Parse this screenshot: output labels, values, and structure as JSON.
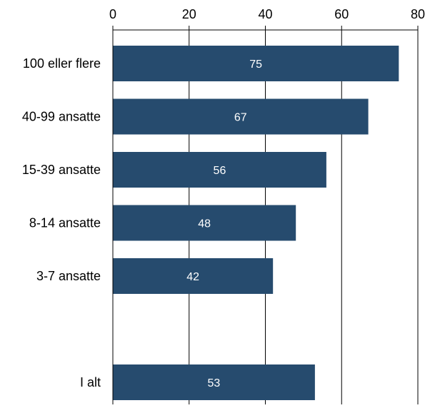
{
  "chart_data": {
    "type": "bar",
    "orientation": "horizontal",
    "categories": [
      "100 eller flere",
      "40-99 ansatte",
      "15-39 ansatte",
      "8-14 ansatte",
      "3-7 ansatte",
      "",
      "I alt"
    ],
    "values": [
      75,
      67,
      56,
      48,
      42,
      null,
      53
    ],
    "data_labels": [
      "75",
      "67",
      "56",
      "48",
      "42",
      "",
      "53"
    ],
    "xlim": [
      0,
      80
    ],
    "x_ticks": [
      0,
      20,
      40,
      60,
      80
    ],
    "x_axis_position": "top",
    "grid": "vertical",
    "legend": "none",
    "bar_color": "#264b6e",
    "label_color": "#ffffff",
    "title": "",
    "xlabel": "",
    "ylabel": ""
  }
}
